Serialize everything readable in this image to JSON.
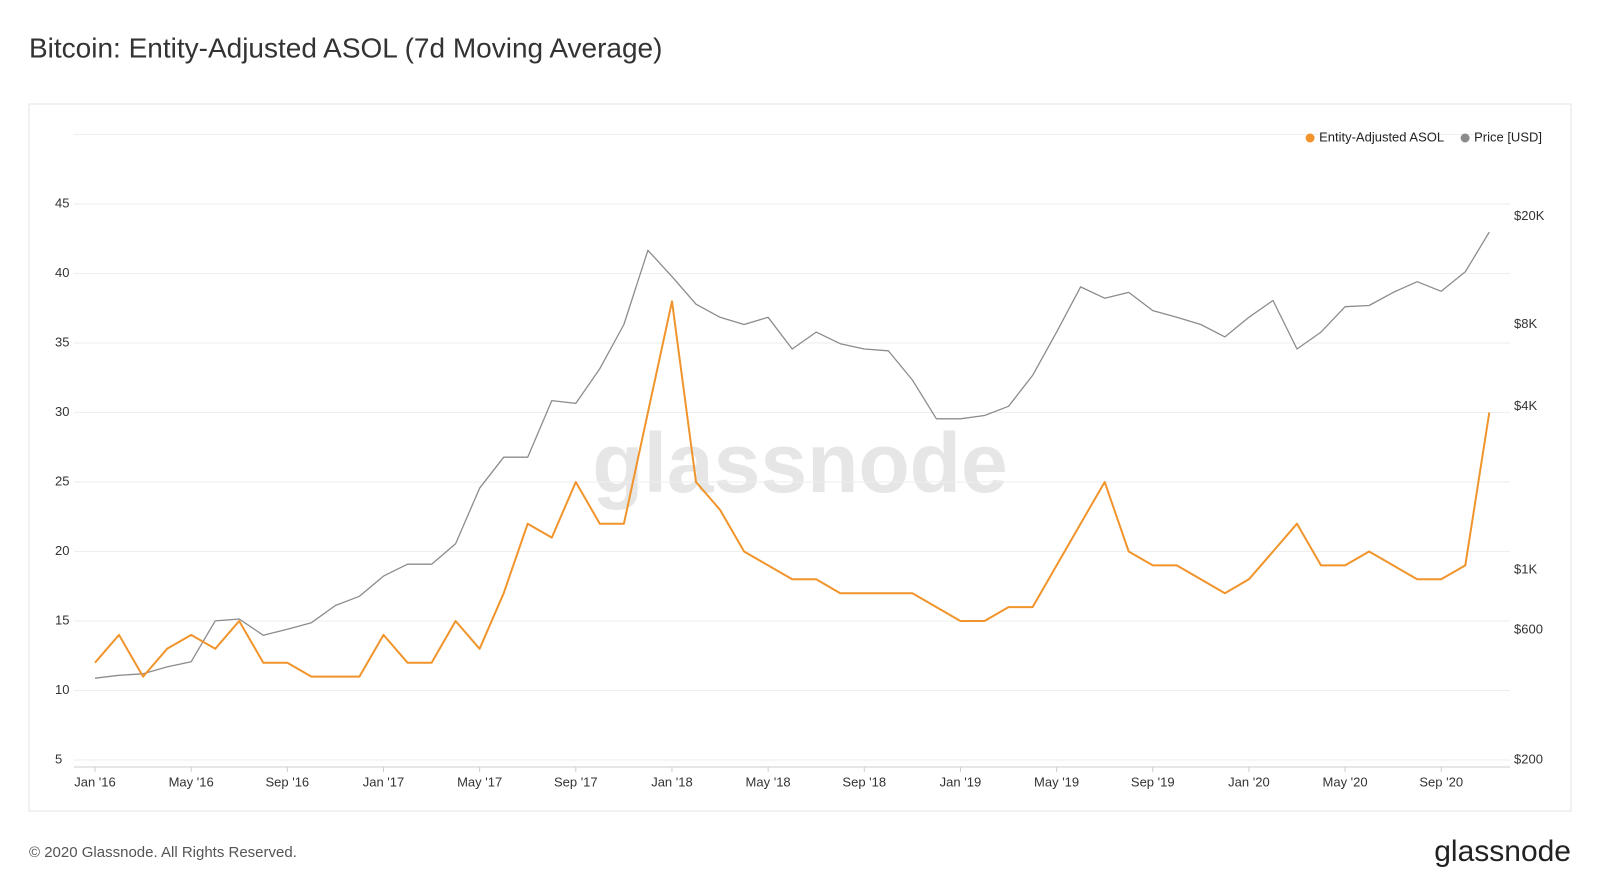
{
  "chart_data": {
    "type": "line",
    "title": "Bitcoin: Entity-Adjusted ASOL (7d Moving Average)",
    "watermark": "glassnode",
    "categories": [
      "Jan '16",
      null,
      null,
      null,
      "May '16",
      null,
      null,
      null,
      "Sep '16",
      null,
      null,
      null,
      "Jan '17",
      null,
      null,
      null,
      "May '17",
      null,
      null,
      null,
      "Sep '17",
      null,
      null,
      null,
      "Jan '18",
      null,
      null,
      null,
      "May '18",
      null,
      null,
      null,
      "Sep '18",
      null,
      null,
      null,
      "Jan '19",
      null,
      null,
      null,
      "May '19",
      null,
      null,
      null,
      "Sep '19",
      null,
      null,
      null,
      "Jan '20",
      null,
      null,
      null,
      "May '20",
      null,
      null,
      null,
      "Sep '20",
      null,
      null
    ],
    "series": [
      {
        "name": "Price [USD]",
        "color": "#8c8c8c",
        "axis": "y2",
        "values": [
          400,
          410,
          415,
          440,
          460,
          650,
          660,
          575,
          605,
          640,
          740,
          800,
          950,
          1050,
          1050,
          1250,
          2000,
          2600,
          2600,
          4200,
          4100,
          5500,
          8000,
          15000,
          12000,
          9500,
          8500,
          8000,
          8500,
          6500,
          7500,
          6800,
          6500,
          6400,
          5000,
          3600,
          3600,
          3700,
          4000,
          5200,
          7500,
          11000,
          10000,
          10500,
          9000,
          8500,
          8000,
          7200,
          8500,
          9800,
          6500,
          7500,
          9300,
          9400,
          10500,
          11500,
          10600,
          12500,
          17500
        ]
      },
      {
        "name": "Entity-Adjusted ASOL",
        "color": "#f0942b",
        "values": [
          12,
          14,
          11,
          13,
          14,
          13,
          15,
          12,
          12,
          11,
          11,
          11,
          14,
          12,
          12,
          15,
          13,
          17,
          22,
          21,
          25,
          22,
          22,
          30,
          38,
          25,
          23,
          20,
          19,
          18,
          18,
          17,
          17,
          17,
          17,
          16,
          15,
          15,
          16,
          16,
          19,
          22,
          25,
          20,
          19,
          19,
          18,
          17,
          18,
          20,
          22,
          19,
          19,
          20,
          19,
          18,
          18,
          19,
          30
        ]
      }
    ],
    "ylim": [
      5,
      50
    ],
    "yticks": [
      5,
      10,
      15,
      20,
      25,
      30,
      35,
      40,
      45
    ],
    "y2lim": [
      200,
      40000
    ],
    "y2scale": "log",
    "y2ticks": [
      {
        "value": 200,
        "label": "$200"
      },
      {
        "value": 600,
        "label": "$600"
      },
      {
        "value": 1000,
        "label": "$1K"
      },
      {
        "value": 4000,
        "label": "$4K"
      },
      {
        "value": 8000,
        "label": "$8K"
      },
      {
        "value": 20000,
        "label": "$20K"
      }
    ],
    "grid": true,
    "legend": "top-right"
  },
  "footer": {
    "copyright": "© 2020 Glassnode. All Rights Reserved.",
    "logo": "glassnode"
  }
}
